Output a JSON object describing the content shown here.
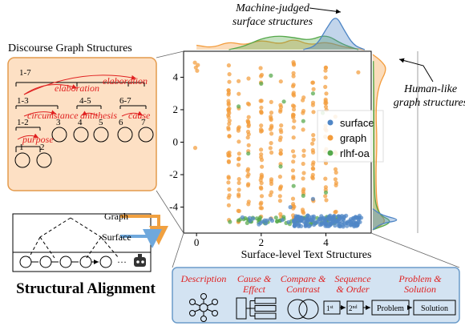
{
  "chart_data": {
    "type": "scatter",
    "title": "",
    "xlabel": "Surface-level Text Structures",
    "ylabel": "",
    "xlim": [
      -0.4,
      5.4
    ],
    "ylim": [
      -5.6,
      5.6
    ],
    "xticks": [
      "0",
      "2",
      "4"
    ],
    "yticks": [
      "4",
      "2",
      "0",
      "-2",
      "-4"
    ],
    "legend_position": "center-right",
    "grid": false,
    "series": [
      {
        "name": "surface",
        "color": "#4f86c6",
        "bands": [
          {
            "x": [
              3.0,
              5.1
            ],
            "y": [
              -5.2,
              -4.5
            ],
            "n": 170
          },
          {
            "x": [
              1.0,
              3.0
            ],
            "y": [
              -5.1,
              -4.6
            ],
            "n": 14
          }
        ],
        "points": [
          [
            2.9,
            -4.0
          ],
          [
            3.6,
            -3.5
          ]
        ]
      },
      {
        "name": "graph",
        "color": "#f39c3c",
        "columns": [
          {
            "x": 1.0,
            "y": [
              -5.0,
              5.0
            ],
            "n": 38
          },
          {
            "x": 1.3,
            "y": [
              -5.0,
              3.8
            ],
            "n": 20
          },
          {
            "x": 1.6,
            "y": [
              -4.9,
              4.2
            ],
            "n": 22
          },
          {
            "x": 2.0,
            "y": [
              -5.0,
              4.8
            ],
            "n": 32
          },
          {
            "x": 2.3,
            "y": [
              -4.9,
              3.2
            ],
            "n": 18
          },
          {
            "x": 2.6,
            "y": [
              -5.0,
              4.0
            ],
            "n": 22
          },
          {
            "x": 3.0,
            "y": [
              -5.0,
              5.0
            ],
            "n": 34
          },
          {
            "x": 3.3,
            "y": [
              -4.8,
              3.4
            ],
            "n": 18
          },
          {
            "x": 3.6,
            "y": [
              -4.8,
              4.0
            ],
            "n": 20
          },
          {
            "x": 4.0,
            "y": [
              -5.0,
              5.0
            ],
            "n": 26
          },
          {
            "x": 4.3,
            "y": [
              -4.8,
              2.2
            ],
            "n": 10
          }
        ],
        "points": [
          [
            -0.05,
            4.9
          ],
          [
            -0.02,
            4.6
          ],
          [
            0.02,
            4.4
          ],
          [
            0.04,
            4.75
          ],
          [
            -0.04,
            -0.35
          ],
          [
            5.0,
            4.3
          ]
        ]
      },
      {
        "name": "rlhf-oa",
        "color": "#55a84a",
        "bands": [
          {
            "x": [
              1.0,
              4.4
            ],
            "y": [
              -5.05,
              -4.6
            ],
            "n": 60
          }
        ],
        "points": [
          [
            2.0,
            3.6
          ],
          [
            2.7,
            2.5
          ],
          [
            3.3,
            1.3
          ],
          [
            1.6,
            -0.7
          ],
          [
            2.3,
            4.1
          ],
          [
            3.6,
            3.0
          ],
          [
            3.0,
            -2.7
          ],
          [
            3.3,
            -3.3
          ],
          [
            4.0,
            -3.1
          ],
          [
            1.3,
            2.2
          ],
          [
            2.6,
            -1.5
          ],
          [
            3.9,
            1.8
          ]
        ]
      }
    ],
    "marginal_x": {
      "surface": [
        [
          3.3,
          0
        ],
        [
          3.7,
          0.1
        ],
        [
          4.0,
          0.55
        ],
        [
          4.3,
          0.95
        ],
        [
          4.55,
          0.55
        ],
        [
          4.85,
          0.12
        ],
        [
          5.2,
          0
        ]
      ],
      "graph": [
        [
          0.0,
          0.12
        ],
        [
          0.5,
          0.05
        ],
        [
          1.0,
          0.22
        ],
        [
          1.5,
          0.12
        ],
        [
          2.0,
          0.27
        ],
        [
          2.6,
          0.14
        ],
        [
          3.0,
          0.3
        ],
        [
          3.5,
          0.12
        ],
        [
          4.0,
          0.22
        ],
        [
          4.6,
          0.06
        ],
        [
          5.2,
          0
        ]
      ],
      "rlhf-oa": [
        [
          1.0,
          0
        ],
        [
          1.5,
          0.1
        ],
        [
          2.0,
          0.3
        ],
        [
          2.5,
          0.38
        ],
        [
          3.0,
          0.33
        ],
        [
          3.5,
          0.25
        ],
        [
          4.0,
          0.42
        ],
        [
          4.5,
          0.15
        ],
        [
          5.0,
          0
        ]
      ]
    },
    "marginal_y": {
      "surface": [
        [
          -5.4,
          0
        ],
        [
          -5.0,
          0.3
        ],
        [
          -4.8,
          1.0
        ],
        [
          -4.5,
          0.3
        ],
        [
          -4.1,
          0
        ]
      ],
      "graph": [
        [
          -5.4,
          0
        ],
        [
          -4.9,
          0.5
        ],
        [
          -4.3,
          0.15
        ],
        [
          -2.0,
          0.1
        ],
        [
          0.0,
          0.15
        ],
        [
          2.0,
          0.1
        ],
        [
          3.5,
          0.2
        ],
        [
          4.5,
          0.5
        ],
        [
          5.0,
          0.3
        ],
        [
          5.4,
          0
        ]
      ],
      "rlhf-oa": [
        [
          -5.4,
          0
        ],
        [
          -4.9,
          0.75
        ],
        [
          -4.4,
          0.1
        ],
        [
          -2.0,
          0.04
        ],
        [
          2.0,
          0.04
        ],
        [
          5.0,
          0.02
        ]
      ]
    }
  },
  "annotations": {
    "machine": [
      "Machine-judged",
      "surface structures"
    ],
    "human": [
      "Human-like",
      "graph structures"
    ]
  },
  "discourse": {
    "title": "Discourse Graph Structures",
    "nodes": [
      "1-7",
      "1-3",
      "4-5",
      "6-7",
      "1-2",
      "3",
      "4",
      "5",
      "6",
      "7",
      "1",
      "2"
    ],
    "relations": [
      "elaboration",
      "elaboration",
      "circumstance",
      "antithesis",
      "cause",
      "purpose"
    ]
  },
  "alignment": {
    "graph_label": "Graph",
    "surface_label": "Surface",
    "ellipsis": "···",
    "title": "Structural Alignment"
  },
  "text_structures": {
    "items": [
      {
        "label": [
          "Description"
        ]
      },
      {
        "label": [
          "Cause &",
          "Effect"
        ]
      },
      {
        "label": [
          "Compare &",
          "Contrast"
        ]
      },
      {
        "label": [
          "Sequence",
          "& Order"
        ]
      },
      {
        "label": [
          "Problem &",
          "Solution"
        ]
      }
    ],
    "seq": [
      "1",
      "st",
      "2",
      "nd"
    ],
    "problem": "Problem",
    "solution": "Solution"
  }
}
